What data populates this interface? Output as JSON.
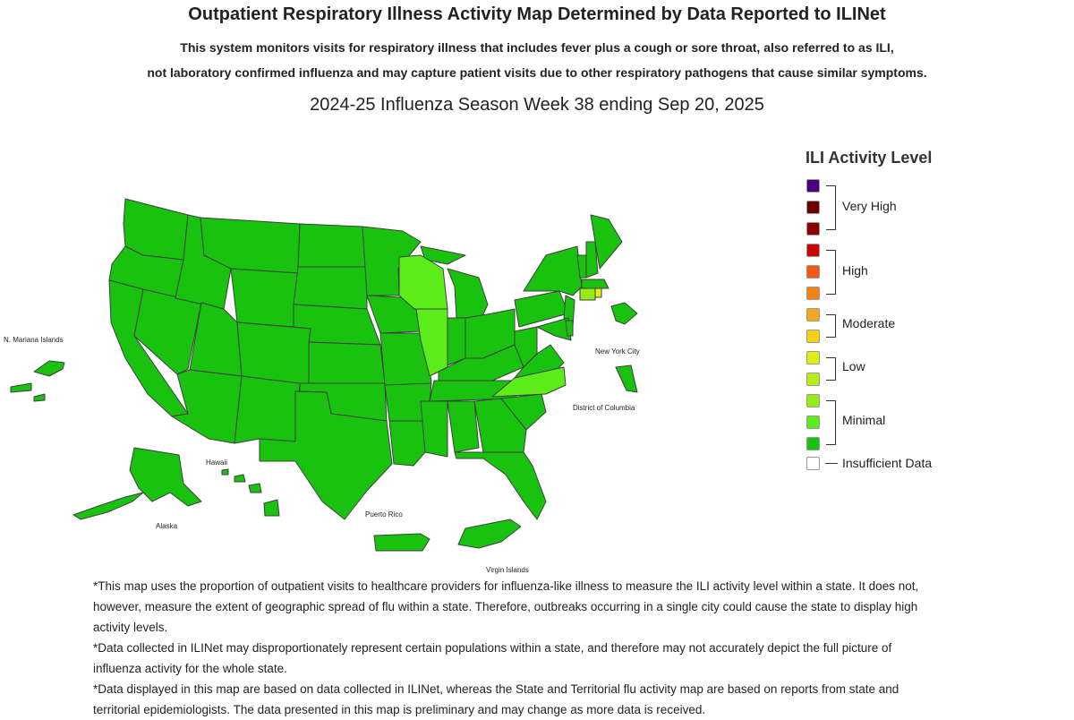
{
  "title": "Outpatient Respiratory Illness Activity Map Determined by Data Reported to ILINet",
  "subtitle_line1": "This system monitors visits for respiratory illness that includes fever plus a cough or sore throat, also referred to as ILI,",
  "subtitle_line2": "not laboratory confirmed influenza and may capture patient visits due to other respiratory pathogens that cause similar symptoms.",
  "week_label": "2024-25 Influenza Season Week 38 ending Sep 20, 2025",
  "map": {
    "inset_labels": {
      "mariana": "N. Mariana Islands",
      "nyc": "New York City",
      "dc": "District of Columbia",
      "hawaii": "Hawaii",
      "alaska": "Alaska",
      "puerto_rico": "Puerto Rico",
      "virgin_islands": "Virgin Islands"
    },
    "region_levels": {
      "default": "Minimal (dark green)",
      "Wisconsin": "Minimal (light green)",
      "Illinois": "Minimal (light green)",
      "North Carolina": "Minimal (light green)",
      "Connecticut": "Minimal (light green)",
      "Rhode Island": "Low (yellow-green)"
    }
  },
  "legend": {
    "title": "ILI Activity Level",
    "colors": [
      "#4b0082",
      "#6b0000",
      "#8b0000",
      "#cc0000",
      "#f05a14",
      "#f58214",
      "#f5a623",
      "#f5d214",
      "#e0ec16",
      "#b8ec16",
      "#96ec16",
      "#5cec1a",
      "#19c20e",
      "#ffffff"
    ],
    "groups": {
      "very_high": "Very High",
      "high": "High",
      "moderate": "Moderate",
      "low": "Low",
      "minimal": "Minimal",
      "insufficient": "Insufficient Data"
    }
  },
  "footnotes": [
    "*This map uses the proportion of outpatient visits to healthcare providers for influenza-like illness to measure the ILI activity level within a state. It does not, however, measure the extent of geographic spread of flu within a state. Therefore, outbreaks occurring in a single city could cause the state to display high activity levels.",
    "*Data collected in ILINet may disproportionately represent certain populations within a state, and therefore may not accurately depict the full picture of influenza activity for the whole state.",
    "*Data displayed in this map are based on data collected in ILINet, whereas the State and Territorial flu activity map are based on reports from state and territorial epidemiologists. The data presented in this map is preliminary and may change as more data is received."
  ]
}
